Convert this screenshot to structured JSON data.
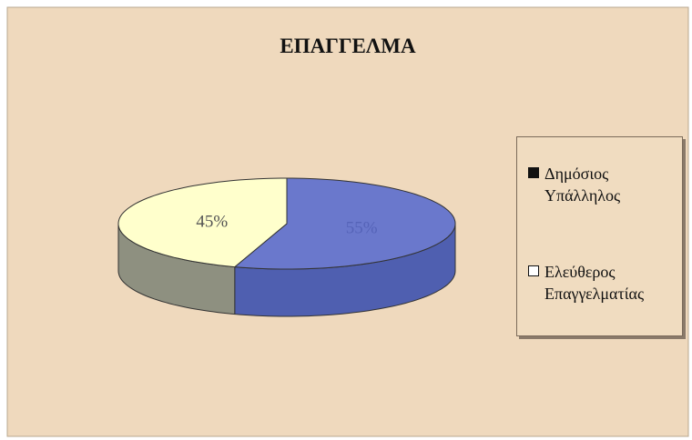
{
  "chart_data": {
    "type": "pie",
    "title": "ΕΠΑΓΓΕΛΜΑ",
    "categories": [
      "Δημόσιος Υπάλληλος",
      "Ελεύθερος Επαγγελματίας"
    ],
    "values": [
      55,
      45
    ],
    "value_labels": [
      "55%",
      "45%"
    ],
    "colors": [
      "#6a78cc",
      "#ffffcc"
    ],
    "side_colors": [
      "#4f5fb0",
      "#8e9080"
    ],
    "legend": "right"
  }
}
